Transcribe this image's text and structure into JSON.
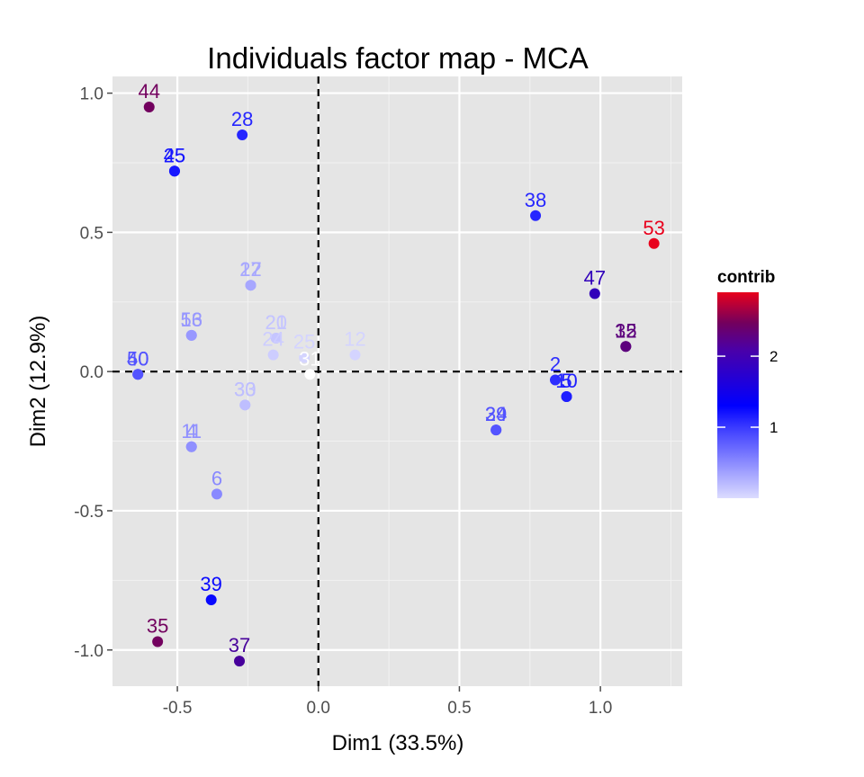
{
  "chart_data": {
    "type": "scatter",
    "title": "Individuals factor map - MCA",
    "xlabel": "Dim1 (33.5%)",
    "ylabel": "Dim2 (12.9%)",
    "xlim": [
      -0.73,
      1.29
    ],
    "ylim": [
      -1.13,
      1.06
    ],
    "xticks": [
      -0.5,
      0.0,
      0.5,
      1.0
    ],
    "xtick_labels": [
      "-0.5",
      "0.0",
      "0.5",
      "1.0"
    ],
    "yticks": [
      -1.0,
      -0.5,
      0.0,
      0.5,
      1.0
    ],
    "ytick_labels": [
      "-1.0",
      "-0.5",
      "0.0",
      "0.5",
      "1.0"
    ],
    "grid": true,
    "reference_lines": {
      "x": 0,
      "y": 0
    },
    "legend": {
      "title": "contrib",
      "position": "right",
      "range": [
        0,
        2.9
      ],
      "ticks": [
        1,
        2
      ],
      "tick_labels": [
        "1",
        "2"
      ],
      "colors": {
        "low": "#dcdcff",
        "mid": "#0000ff",
        "high": "#e8001c"
      }
    },
    "points": [
      {
        "label": "44",
        "x": -0.6,
        "y": 0.95,
        "contrib": 2.5
      },
      {
        "label": "45",
        "x": -0.51,
        "y": 0.72,
        "contrib": 1.3
      },
      {
        "label": "25",
        "x": -0.51,
        "y": 0.72,
        "contrib": 1.3
      },
      {
        "label": "28",
        "x": -0.27,
        "y": 0.85,
        "contrib": 1.2
      },
      {
        "label": "38",
        "x": 0.77,
        "y": 0.56,
        "contrib": 1.2
      },
      {
        "label": "53",
        "x": 1.19,
        "y": 0.46,
        "contrib": 2.9
      },
      {
        "label": "47",
        "x": 0.98,
        "y": 0.28,
        "contrib": 1.9
      },
      {
        "label": "15",
        "x": 1.09,
        "y": 0.09,
        "contrib": 2.3
      },
      {
        "label": "32",
        "x": 1.09,
        "y": 0.09,
        "contrib": 2.3
      },
      {
        "label": "17",
        "x": -0.24,
        "y": 0.31,
        "contrib": 0.35
      },
      {
        "label": "22",
        "x": -0.24,
        "y": 0.31,
        "contrib": 0.35
      },
      {
        "label": "56",
        "x": -0.45,
        "y": 0.13,
        "contrib": 0.45
      },
      {
        "label": "13",
        "x": -0.45,
        "y": 0.13,
        "contrib": 0.45
      },
      {
        "label": "20",
        "x": -0.15,
        "y": 0.12,
        "contrib": 0.15
      },
      {
        "label": "21",
        "x": -0.15,
        "y": 0.12,
        "contrib": 0.15
      },
      {
        "label": "24",
        "x": -0.16,
        "y": 0.06,
        "contrib": 0.1
      },
      {
        "label": "25",
        "x": -0.05,
        "y": 0.05,
        "contrib": 0.05
      },
      {
        "label": "12",
        "x": 0.13,
        "y": 0.06,
        "contrib": 0.05
      },
      {
        "label": "31",
        "x": -0.03,
        "y": -0.01,
        "contrib": 0.0
      },
      {
        "label": "40",
        "x": -0.64,
        "y": -0.01,
        "contrib": 0.9
      },
      {
        "label": "50",
        "x": -0.64,
        "y": -0.01,
        "contrib": 0.9
      },
      {
        "label": "2",
        "x": 0.84,
        "y": -0.03,
        "contrib": 1.15
      },
      {
        "label": "5",
        "x": 0.88,
        "y": -0.09,
        "contrib": 1.25
      },
      {
        "label": "10",
        "x": 0.88,
        "y": -0.09,
        "contrib": 1.25
      },
      {
        "label": "30",
        "x": -0.26,
        "y": -0.12,
        "contrib": 0.2
      },
      {
        "label": "33",
        "x": -0.26,
        "y": -0.12,
        "contrib": 0.2
      },
      {
        "label": "29",
        "x": 0.63,
        "y": -0.21,
        "contrib": 0.9
      },
      {
        "label": "34",
        "x": 0.63,
        "y": -0.21,
        "contrib": 0.9
      },
      {
        "label": "4",
        "x": -0.45,
        "y": -0.27,
        "contrib": 0.5
      },
      {
        "label": "11",
        "x": -0.45,
        "y": -0.27,
        "contrib": 0.5
      },
      {
        "label": "6",
        "x": -0.36,
        "y": -0.44,
        "contrib": 0.55
      },
      {
        "label": "39",
        "x": -0.38,
        "y": -0.82,
        "contrib": 1.4
      },
      {
        "label": "35",
        "x": -0.57,
        "y": -0.97,
        "contrib": 2.5
      },
      {
        "label": "37",
        "x": -0.28,
        "y": -1.04,
        "contrib": 2.1
      }
    ]
  }
}
